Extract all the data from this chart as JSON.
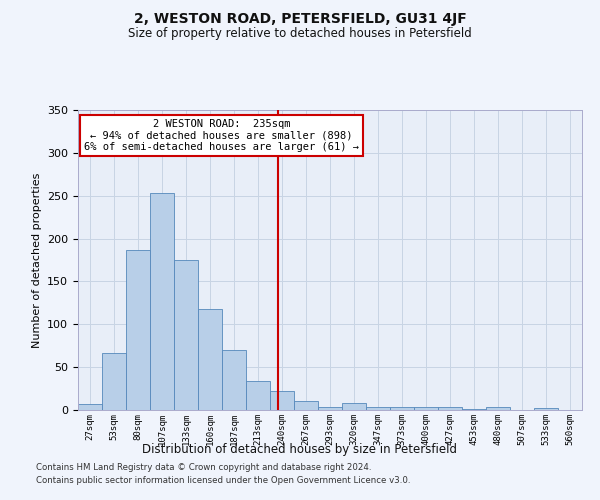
{
  "title": "2, WESTON ROAD, PETERSFIELD, GU31 4JF",
  "subtitle": "Size of property relative to detached houses in Petersfield",
  "xlabel": "Distribution of detached houses by size in Petersfield",
  "ylabel": "Number of detached properties",
  "categories": [
    "27sqm",
    "53sqm",
    "80sqm",
    "107sqm",
    "133sqm",
    "160sqm",
    "187sqm",
    "213sqm",
    "240sqm",
    "267sqm",
    "293sqm",
    "320sqm",
    "347sqm",
    "373sqm",
    "400sqm",
    "427sqm",
    "453sqm",
    "480sqm",
    "507sqm",
    "533sqm",
    "560sqm"
  ],
  "bar_heights": [
    7,
    67,
    187,
    253,
    175,
    118,
    70,
    34,
    22,
    10,
    4,
    8,
    4,
    4,
    4,
    3,
    1,
    3,
    0,
    2,
    0
  ],
  "bar_color": "#b8cfe8",
  "bar_edge_color": "#5588bb",
  "grid_color": "#c8d4e4",
  "bg_color": "#e8eef8",
  "fig_bg_color": "#f0f4fc",
  "vline_x": 8.35,
  "annotation_text": "2 WESTON ROAD:  235sqm\n← 94% of detached houses are smaller (898)\n6% of semi-detached houses are larger (61) →",
  "annotation_box_color": "#ffffff",
  "annotation_box_edge": "#cc0000",
  "vline_color": "#cc0000",
  "footer1": "Contains HM Land Registry data © Crown copyright and database right 2024.",
  "footer2": "Contains public sector information licensed under the Open Government Licence v3.0.",
  "ylim": [
    0,
    350
  ],
  "yticks": [
    0,
    50,
    100,
    150,
    200,
    250,
    300,
    350
  ]
}
